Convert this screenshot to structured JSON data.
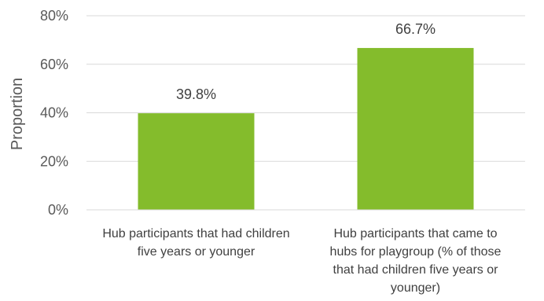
{
  "chart_data": {
    "type": "bar",
    "title": "",
    "xlabel": "",
    "ylabel": "Proportion",
    "ylim": [
      0,
      80
    ],
    "yticks": [
      0,
      20,
      40,
      60,
      80
    ],
    "ytick_labels": [
      "0%",
      "20%",
      "40%",
      "60%",
      "80%"
    ],
    "grid": true,
    "legend": "none",
    "bar_color": "#84BC2C",
    "categories": [
      [
        "Hub participants that had children",
        "five years or younger"
      ],
      [
        "Hub participants that came to",
        "hubs for playgroup (% of those",
        "that had children five years or",
        "younger)"
      ]
    ],
    "values": [
      39.8,
      66.7
    ],
    "data_labels": [
      "39.8%",
      "66.7%"
    ]
  }
}
